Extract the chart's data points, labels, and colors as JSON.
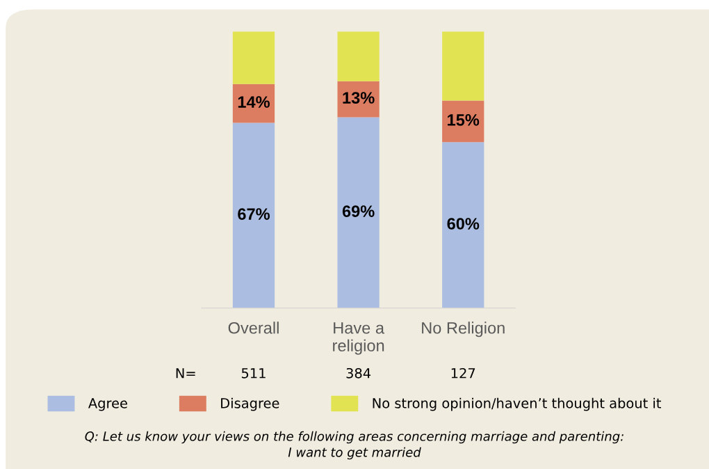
{
  "chart_data": {
    "type": "bar",
    "stacked": true,
    "categories": [
      "Overall",
      "Have a\nreligion",
      "No Religion"
    ],
    "series": [
      {
        "name": "Agree",
        "color": "#abbde0",
        "values": [
          67,
          69,
          60
        ],
        "value_labels": [
          "67%",
          "69%",
          "60%"
        ]
      },
      {
        "name": "Disagree",
        "color": "#dc7d62",
        "values": [
          14,
          13,
          15
        ],
        "value_labels": [
          "14%",
          "13%",
          "15%"
        ]
      },
      {
        "name": "No strong opinion/haven’t thought about it",
        "color": "#e1e352",
        "values": [
          19,
          18,
          25
        ],
        "value_labels": [
          null,
          null,
          null
        ]
      }
    ],
    "annotations": [
      "N=",
      "511",
      "384",
      "127",
      "Q: Let us know your views on the following areas concerning marriage and parenting:\nI want to get married"
    ],
    "legend": "bottom",
    "grid": false,
    "tick_labels": "x"
  }
}
